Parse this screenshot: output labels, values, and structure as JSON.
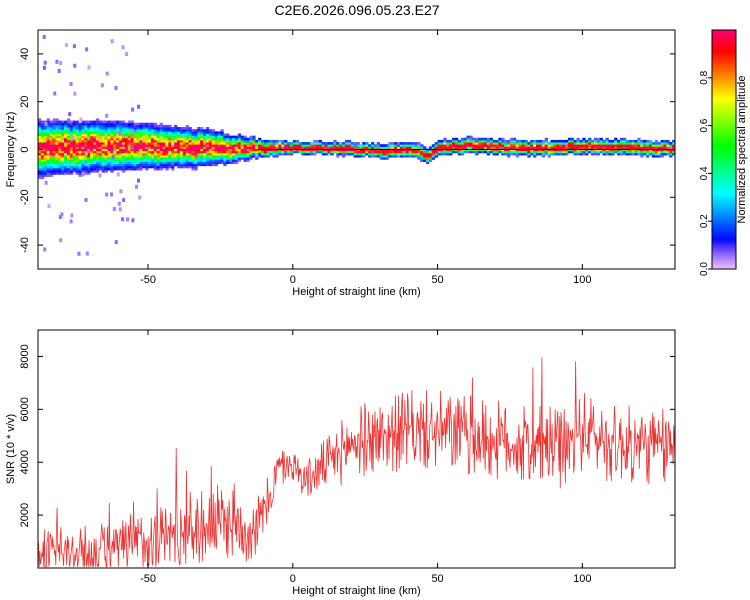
{
  "title": "C2E6.2026.096.05.23.E27",
  "chart_data": [
    {
      "type": "heatmap",
      "name": "spectrogram",
      "xlabel": "Height of straight line (km)",
      "ylabel": "Frequency (Hz)",
      "xlim": [
        -88,
        132
      ],
      "ylim": [
        -50,
        50
      ],
      "xticks": [
        -50,
        0,
        50,
        100
      ],
      "yticks": [
        -40,
        -20,
        0,
        20,
        40
      ],
      "band_center": [
        [
          -88,
          0
        ],
        [
          -60,
          1
        ],
        [
          -40,
          0.5
        ],
        [
          -20,
          0
        ],
        [
          0,
          0.5
        ],
        [
          20,
          0
        ],
        [
          30,
          -1
        ],
        [
          40,
          0
        ],
        [
          46,
          -3
        ],
        [
          50,
          0
        ],
        [
          60,
          1.5
        ],
        [
          80,
          0
        ],
        [
          100,
          1
        ],
        [
          132,
          0
        ]
      ],
      "band_halfwidth": [
        [
          -88,
          9
        ],
        [
          -60,
          8
        ],
        [
          -30,
          6
        ],
        [
          -12,
          3
        ],
        [
          0,
          2
        ],
        [
          50,
          2.5
        ],
        [
          132,
          2.5
        ]
      ],
      "colorbar": {
        "label": "Normalized spectral amplitude",
        "ticks": [
          0.0,
          0.2,
          0.4,
          0.6,
          0.8
        ],
        "tick_labels": [
          "0.0",
          "0.2",
          "0.4",
          "0.6",
          "0.8"
        ],
        "range": [
          0,
          1
        ]
      }
    },
    {
      "type": "line",
      "name": "snr",
      "xlabel": "Height of straight line (km)",
      "ylabel": "SNR (10 * v/v)",
      "xlim": [
        -88,
        132
      ],
      "ylim": [
        0,
        9000
      ],
      "xticks": [
        -50,
        0,
        50,
        100
      ],
      "yticks": [
        2000,
        4000,
        6000,
        8000
      ],
      "line_color": "#ee3333",
      "trend": [
        [
          -88,
          600
        ],
        [
          -70,
          550
        ],
        [
          -60,
          650
        ],
        [
          -50,
          1100
        ],
        [
          -30,
          1600
        ],
        [
          -20,
          1800
        ],
        [
          -15,
          1400
        ],
        [
          -10,
          2000
        ],
        [
          -5,
          3800
        ],
        [
          0,
          3900
        ],
        [
          5,
          3300
        ],
        [
          10,
          3800
        ],
        [
          15,
          4200
        ],
        [
          20,
          4700
        ],
        [
          30,
          5000
        ],
        [
          40,
          5200
        ],
        [
          55,
          5100
        ],
        [
          70,
          4800
        ],
        [
          80,
          4600
        ],
        [
          95,
          4500
        ],
        [
          100,
          5200
        ],
        [
          110,
          4700
        ],
        [
          132,
          4500
        ]
      ],
      "noise_amplitude": [
        [
          -88,
          900
        ],
        [
          -60,
          1200
        ],
        [
          -40,
          1400
        ],
        [
          -20,
          1500
        ],
        [
          0,
          600
        ],
        [
          20,
          1400
        ],
        [
          50,
          1600
        ],
        [
          132,
          1500
        ]
      ]
    }
  ],
  "colors": {
    "accent_line": "#ee3333",
    "frame": "#000000",
    "background": "#ffffff"
  }
}
